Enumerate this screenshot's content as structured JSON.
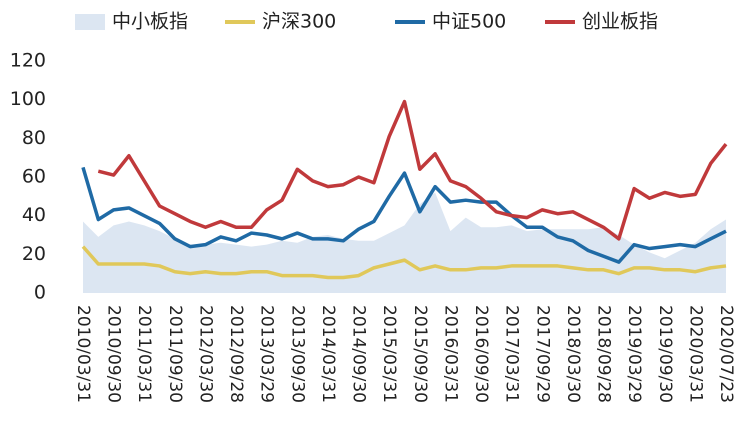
{
  "chart_data": {
    "type": "line",
    "categories": [
      "2010/03/31",
      null,
      "2010/09/30",
      null,
      "2011/03/31",
      null,
      "2011/09/30",
      null,
      "2012/03/30",
      null,
      "2012/09/28",
      null,
      "2013/03/29",
      null,
      "2013/09/30",
      null,
      "2014/03/31",
      null,
      "2014/09/30",
      null,
      "2015/03/31",
      null,
      "2015/09/30",
      null,
      "2016/03/31",
      null,
      "2016/09/30",
      null,
      "2017/03/31",
      null,
      "2017/09/29",
      null,
      "2018/03/30",
      null,
      "2018/09/28",
      null,
      "2019/03/29",
      null,
      "2019/09/30",
      null,
      "2020/03/31",
      null,
      "2020/07/23"
    ],
    "series": [
      {
        "name": "中小板指",
        "type": "area",
        "color": "#dce6f2",
        "values": [
          37,
          29,
          35,
          37,
          35,
          32,
          28,
          25,
          25,
          26,
          25,
          24,
          25,
          27,
          26,
          29,
          30,
          28,
          27,
          27,
          31,
          35,
          46,
          52,
          32,
          39,
          34,
          34,
          35,
          32,
          33,
          33,
          33,
          33,
          34,
          30,
          25,
          21,
          18,
          22,
          26,
          33,
          38
        ]
      },
      {
        "name": "沪深300",
        "type": "line",
        "color": "#e0c85a",
        "values": [
          24,
          15,
          15,
          15,
          15,
          14,
          11,
          10,
          11,
          10,
          10,
          11,
          11,
          9,
          9,
          9,
          8,
          8,
          9,
          13,
          15,
          17,
          12,
          14,
          12,
          12,
          13,
          13,
          14,
          14,
          14,
          14,
          13,
          12,
          12,
          10,
          13,
          13,
          12,
          12,
          11,
          13,
          14
        ]
      },
      {
        "name": "中证500",
        "type": "line",
        "color": "#1f6aa5",
        "values": [
          65,
          38,
          43,
          44,
          40,
          36,
          28,
          24,
          25,
          29,
          27,
          31,
          30,
          28,
          31,
          28,
          28,
          27,
          33,
          37,
          50,
          62,
          42,
          55,
          47,
          48,
          47,
          47,
          40,
          34,
          34,
          29,
          27,
          22,
          19,
          16,
          25,
          23,
          24,
          25,
          24,
          28,
          32
        ]
      },
      {
        "name": "创业板指",
        "type": "line",
        "color": "#c0393b",
        "values": [
          null,
          63,
          61,
          71,
          58,
          45,
          41,
          37,
          34,
          37,
          34,
          34,
          43,
          48,
          64,
          58,
          55,
          56,
          60,
          57,
          81,
          99,
          64,
          72,
          58,
          55,
          49,
          42,
          40,
          39,
          43,
          41,
          42,
          38,
          34,
          28,
          54,
          49,
          52,
          50,
          51,
          67,
          77
        ]
      }
    ],
    "ylim": [
      0,
      120
    ],
    "yticks": [
      0,
      20,
      40,
      60,
      80,
      100,
      120
    ],
    "grid": false,
    "legend": "top"
  }
}
